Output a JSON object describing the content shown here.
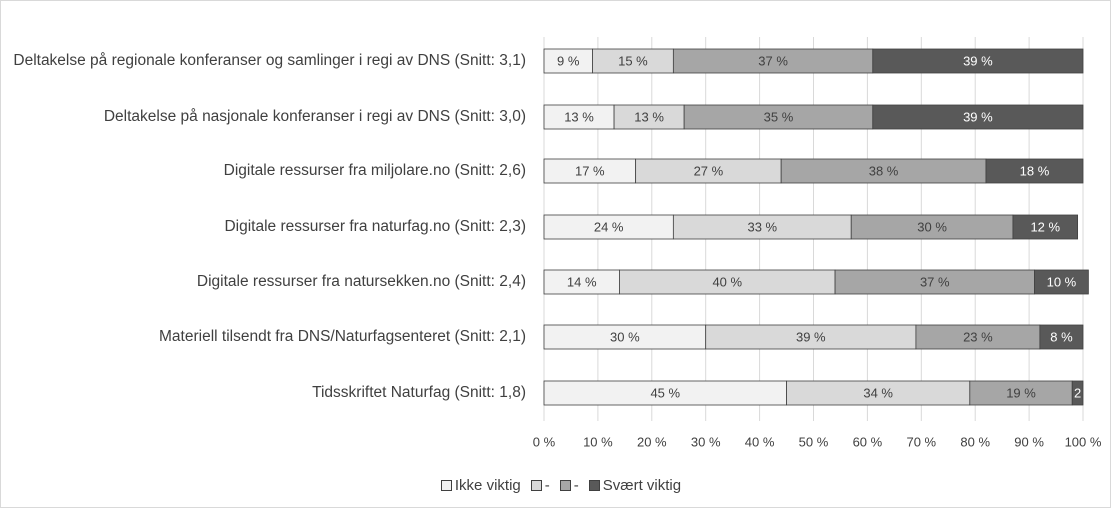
{
  "chart_data": {
    "type": "stacked-bar-horizontal",
    "categories": [
      "Deltakelse på regionale konferanser og samlinger i regi av DNS (Snitt: 3,1)",
      "Deltakelse på nasjonale konferanser i regi av DNS (Snitt: 3,0)",
      "Digitale ressurser fra miljolare.no (Snitt: 2,6)",
      "Digitale ressurser fra naturfag.no (Snitt: 2,3)",
      "Digitale ressurser fra natursekken.no (Snitt: 2,4)",
      "Materiell tilsendt fra DNS/Naturfagsenteret (Snitt: 2,1)",
      "Tidsskriftet Naturfag (Snitt: 1,8)"
    ],
    "series": [
      {
        "name": "Ikke viktig",
        "color": "#f2f2f2",
        "label_color": "#404040",
        "values": [
          9,
          13,
          17,
          24,
          14,
          30,
          45
        ],
        "value_labels": [
          "9 %",
          "13 %",
          "17 %",
          "24 %",
          "14 %",
          "30 %",
          "45 %"
        ]
      },
      {
        "name": "-",
        "color": "#d9d9d9",
        "label_color": "#404040",
        "values": [
          15,
          13,
          27,
          33,
          40,
          39,
          34
        ],
        "value_labels": [
          "15 %",
          "13 %",
          "27 %",
          "33 %",
          "40 %",
          "39 %",
          "34 %"
        ]
      },
      {
        "name": "-",
        "color": "#a6a6a6",
        "label_color": "#404040",
        "values": [
          37,
          35,
          38,
          30,
          37,
          23,
          19
        ],
        "value_labels": [
          "37 %",
          "35 %",
          "38 %",
          "30 %",
          "37 %",
          "23 %",
          "19 %"
        ]
      },
      {
        "name": "Svært viktig",
        "color": "#595959",
        "label_color": "#ffffff",
        "values": [
          39,
          39,
          18,
          12,
          10,
          8,
          2
        ],
        "value_labels": [
          "39 %",
          "39 %",
          "18 %",
          "12 %",
          "10 %",
          "8 %",
          "2"
        ]
      }
    ],
    "xlim": [
      0,
      100
    ],
    "xticks": [
      {
        "value": 0,
        "label": "0 %"
      },
      {
        "value": 10,
        "label": "10 %"
      },
      {
        "value": 20,
        "label": "20 %"
      },
      {
        "value": 30,
        "label": "30 %"
      },
      {
        "value": 40,
        "label": "40 %"
      },
      {
        "value": 50,
        "label": "50 %"
      },
      {
        "value": 60,
        "label": "60 %"
      },
      {
        "value": 70,
        "label": "70 %"
      },
      {
        "value": 80,
        "label": "80 %"
      },
      {
        "value": 90,
        "label": "90 %"
      },
      {
        "value": 100,
        "label": "100 %"
      }
    ],
    "grid": true,
    "legend": "bottom"
  }
}
